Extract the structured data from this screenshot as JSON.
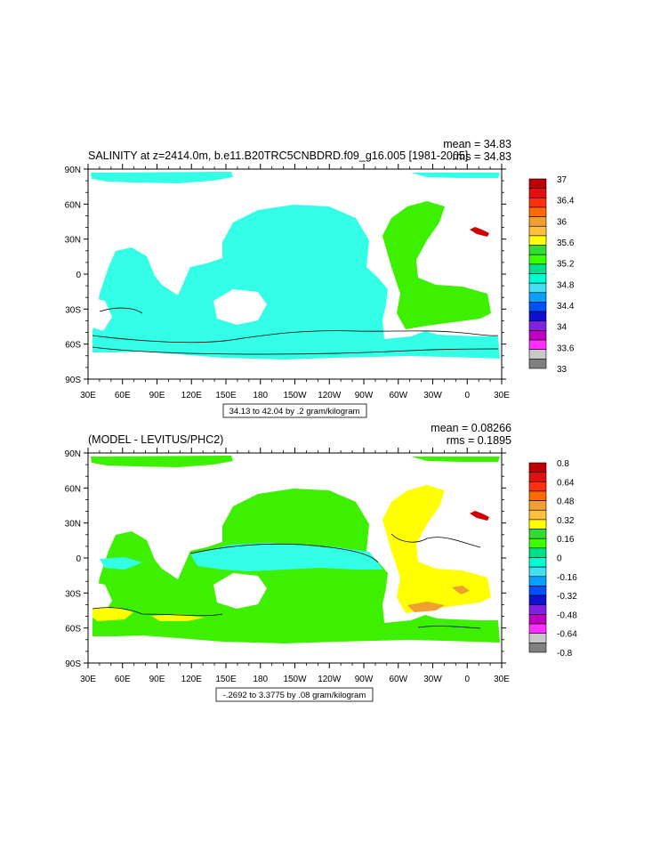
{
  "panels": [
    {
      "title": "SALINITY at z=2414.0m, b.e11.B20TRC5CNBDRD.f09_g16.005 [1981-2005]",
      "stats": [
        "mean = 34.83",
        "rms = 34.83"
      ],
      "range_label": "34.13 to 42.04 by .2 gram/kilogram",
      "colorbar": {
        "labels": [
          "37",
          "36.4",
          "36",
          "35.6",
          "35.2",
          "34.8",
          "34.4",
          "34",
          "33.6",
          "33"
        ],
        "colors": [
          "#c00000",
          "#e01010",
          "#ff3010",
          "#ff6a00",
          "#f0a030",
          "#ffc040",
          "#ffff00",
          "#32dc32",
          "#3cff00",
          "#00e08c",
          "#00ffd0",
          "#40e0f0",
          "#0aa0ff",
          "#0050ff",
          "#1010d0",
          "#8020e0",
          "#c000c0",
          "#ff30ff",
          "#c8c8c8",
          "#808080"
        ]
      }
    },
    {
      "title": "(MODEL - LEVITUS/PHC2)",
      "stats": [
        "mean = 0.08266",
        "rms = 0.1895"
      ],
      "range_label": "-.2692 to 3.3775 by .08 gram/kilogram",
      "colorbar": {
        "labels": [
          "0.8",
          "0.64",
          "0.48",
          "0.32",
          "0.16",
          "0",
          "-0.16",
          "-0.32",
          "-0.48",
          "-0.64",
          "-0.8"
        ],
        "colors": [
          "#c00000",
          "#e01010",
          "#ff3010",
          "#ff6a00",
          "#f0a030",
          "#ffc040",
          "#ffff00",
          "#32dc32",
          "#3cff00",
          "#00e08c",
          "#00ffd0",
          "#40e0f0",
          "#0aa0ff",
          "#0050ff",
          "#1010d0",
          "#8020e0",
          "#c000c0",
          "#ff30ff",
          "#c8c8c8",
          "#808080"
        ]
      }
    }
  ],
  "axes": {
    "lat_labels": [
      "90N",
      "60N",
      "30N",
      "0",
      "30S",
      "60S",
      "90S"
    ],
    "lon_labels": [
      "30E",
      "60E",
      "90E",
      "120E",
      "150E",
      "180",
      "150W",
      "120W",
      "90W",
      "60W",
      "30W",
      "0",
      "30E"
    ]
  },
  "fields": {
    "salinity_colors": {
      "ocean": "#33ffe6",
      "atlantic": "#3cf000",
      "med": "#d00000",
      "contour": "#000000"
    },
    "diff_colors": {
      "base": "#3cf000",
      "cyan": "#33ffe6",
      "yellow": "#ffff00",
      "orange": "#f0a030",
      "blue": "#0aa0ff"
    }
  }
}
